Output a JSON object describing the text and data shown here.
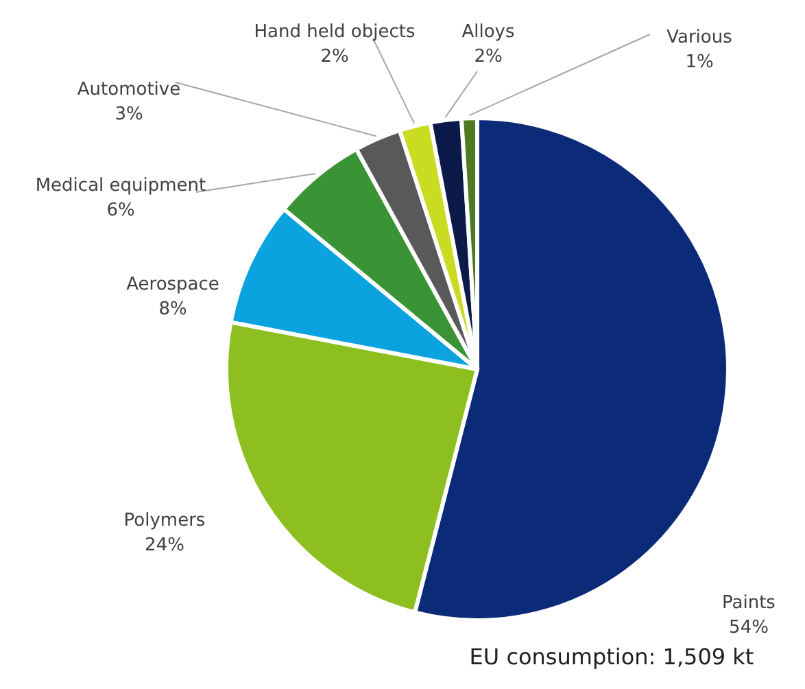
{
  "chart_data": {
    "type": "pie",
    "categories": [
      "Paints",
      "Polymers",
      "Aerospace",
      "Medical equipment",
      "Automotive",
      "Hand held objects",
      "Alloys",
      "Various"
    ],
    "values": [
      54,
      24,
      8,
      6,
      3,
      2,
      2,
      1
    ],
    "colors": [
      "#0b2a78",
      "#8cbf1f",
      "#0aa3df",
      "#3a9335",
      "#595959",
      "#c9dc22",
      "#0c1a4a",
      "#4e7a22"
    ],
    "value_labels": [
      "54%",
      "24%",
      "8%",
      "6%",
      "3%",
      "2%",
      "2%",
      "1%"
    ],
    "annotations": [
      "EU consumption: 1,509 kt"
    ]
  }
}
